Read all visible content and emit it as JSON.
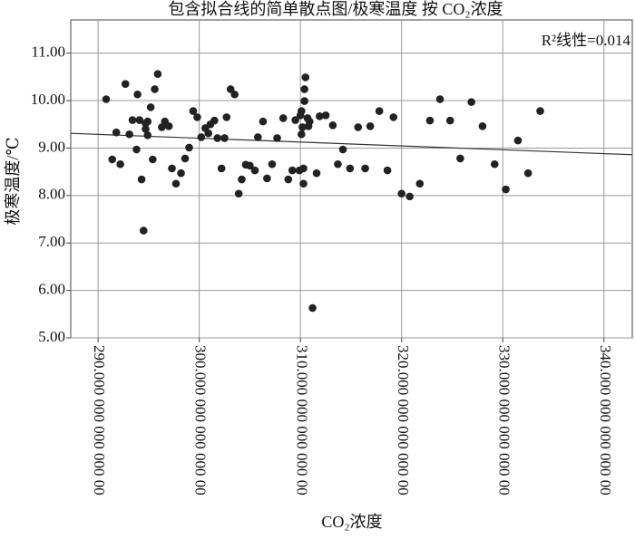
{
  "chart_data": {
    "type": "scatter",
    "title": "包含拟合线的简单散点图/极寒温度 按 CO₂浓度",
    "xlabel": "CO₂浓度",
    "ylabel": "极寒温度/℃",
    "annotation": "R²线性=0.014",
    "color": "#222222",
    "fit_color": "#333333",
    "grid": true,
    "xlim": [
      287.3,
      342.8
    ],
    "ylim": [
      5,
      11.7
    ],
    "xticks": [
      {
        "value": 290,
        "label": "290.000 000 000 000 00"
      },
      {
        "value": 300,
        "label": "300.000 000 000 000 00"
      },
      {
        "value": 310,
        "label": "310.000 000 000 000 00"
      },
      {
        "value": 320,
        "label": "320.000 000 000 000 00"
      },
      {
        "value": 330,
        "label": "330.000 000 000 000 00"
      },
      {
        "value": 340,
        "label": "340.000 000 000 000 00"
      }
    ],
    "yticks": [
      {
        "value": 5,
        "label": "5.00"
      },
      {
        "value": 6,
        "label": "6.00"
      },
      {
        "value": 7,
        "label": "7.00"
      },
      {
        "value": 8,
        "label": "8.00"
      },
      {
        "value": 9,
        "label": "9.00"
      },
      {
        "value": 10,
        "label": "10.00"
      },
      {
        "value": 11,
        "label": "11.00"
      }
    ],
    "x": [
      290.8,
      291.4,
      291.8,
      292.2,
      292.7,
      293.1,
      293.4,
      293.8,
      293.9,
      294.1,
      294.3,
      294.5,
      294.7,
      294.7,
      294.9,
      294.9,
      295.2,
      295.4,
      295.6,
      295.9,
      296.3,
      296.6,
      297.0,
      297.3,
      297.7,
      298.2,
      298.6,
      299.0,
      299.4,
      299.8,
      300.2,
      300.6,
      300.9,
      301.1,
      301.5,
      301.8,
      302.2,
      302.5,
      302.7,
      303.1,
      303.5,
      303.9,
      304.2,
      304.6,
      305.0,
      305.5,
      305.8,
      306.3,
      306.7,
      307.2,
      307.7,
      308.3,
      308.8,
      309.2,
      309.5,
      309.9,
      310.0,
      310.1,
      310.1,
      310.2,
      310.3,
      310.3,
      310.4,
      310.4,
      310.5,
      310.7,
      310.8,
      310.9,
      311.2,
      311.6,
      311.9,
      312.5,
      313.2,
      313.7,
      314.2,
      314.9,
      315.7,
      316.4,
      316.9,
      317.8,
      318.6,
      319.2,
      320.0,
      320.8,
      321.8,
      322.8,
      323.8,
      324.8,
      325.8,
      326.9,
      328.0,
      329.2,
      330.3,
      331.5,
      332.5,
      333.7
    ],
    "y": [
      10.03,
      8.76,
      9.33,
      8.66,
      10.35,
      9.29,
      9.59,
      8.97,
      10.13,
      9.59,
      8.34,
      7.26,
      9.52,
      9.4,
      9.56,
      9.27,
      9.86,
      8.76,
      10.24,
      10.56,
      9.44,
      9.56,
      9.46,
      8.57,
      8.25,
      8.47,
      8.78,
      9.01,
      9.78,
      9.65,
      9.23,
      9.42,
      9.31,
      9.5,
      9.58,
      9.21,
      8.57,
      9.21,
      9.65,
      10.24,
      10.13,
      8.04,
      8.34,
      8.65,
      8.63,
      8.53,
      9.23,
      9.56,
      8.36,
      8.66,
      9.21,
      9.63,
      8.34,
      8.53,
      9.59,
      8.53,
      9.69,
      9.78,
      9.29,
      9.44,
      8.25,
      8.57,
      9.99,
      10.24,
      10.49,
      9.63,
      9.46,
      9.56,
      5.63,
      8.47,
      9.67,
      9.69,
      9.48,
      8.66,
      8.97,
      8.57,
      9.44,
      8.57,
      9.46,
      9.78,
      8.53,
      9.65,
      8.04,
      7.98,
      8.25,
      9.58,
      10.03,
      9.58,
      8.78,
      9.97,
      9.46,
      8.66,
      8.13,
      9.16,
      8.47,
      9.78
    ],
    "fit_line": {
      "x": [
        287.3,
        342.8
      ],
      "y": [
        9.31,
        8.86
      ]
    }
  }
}
